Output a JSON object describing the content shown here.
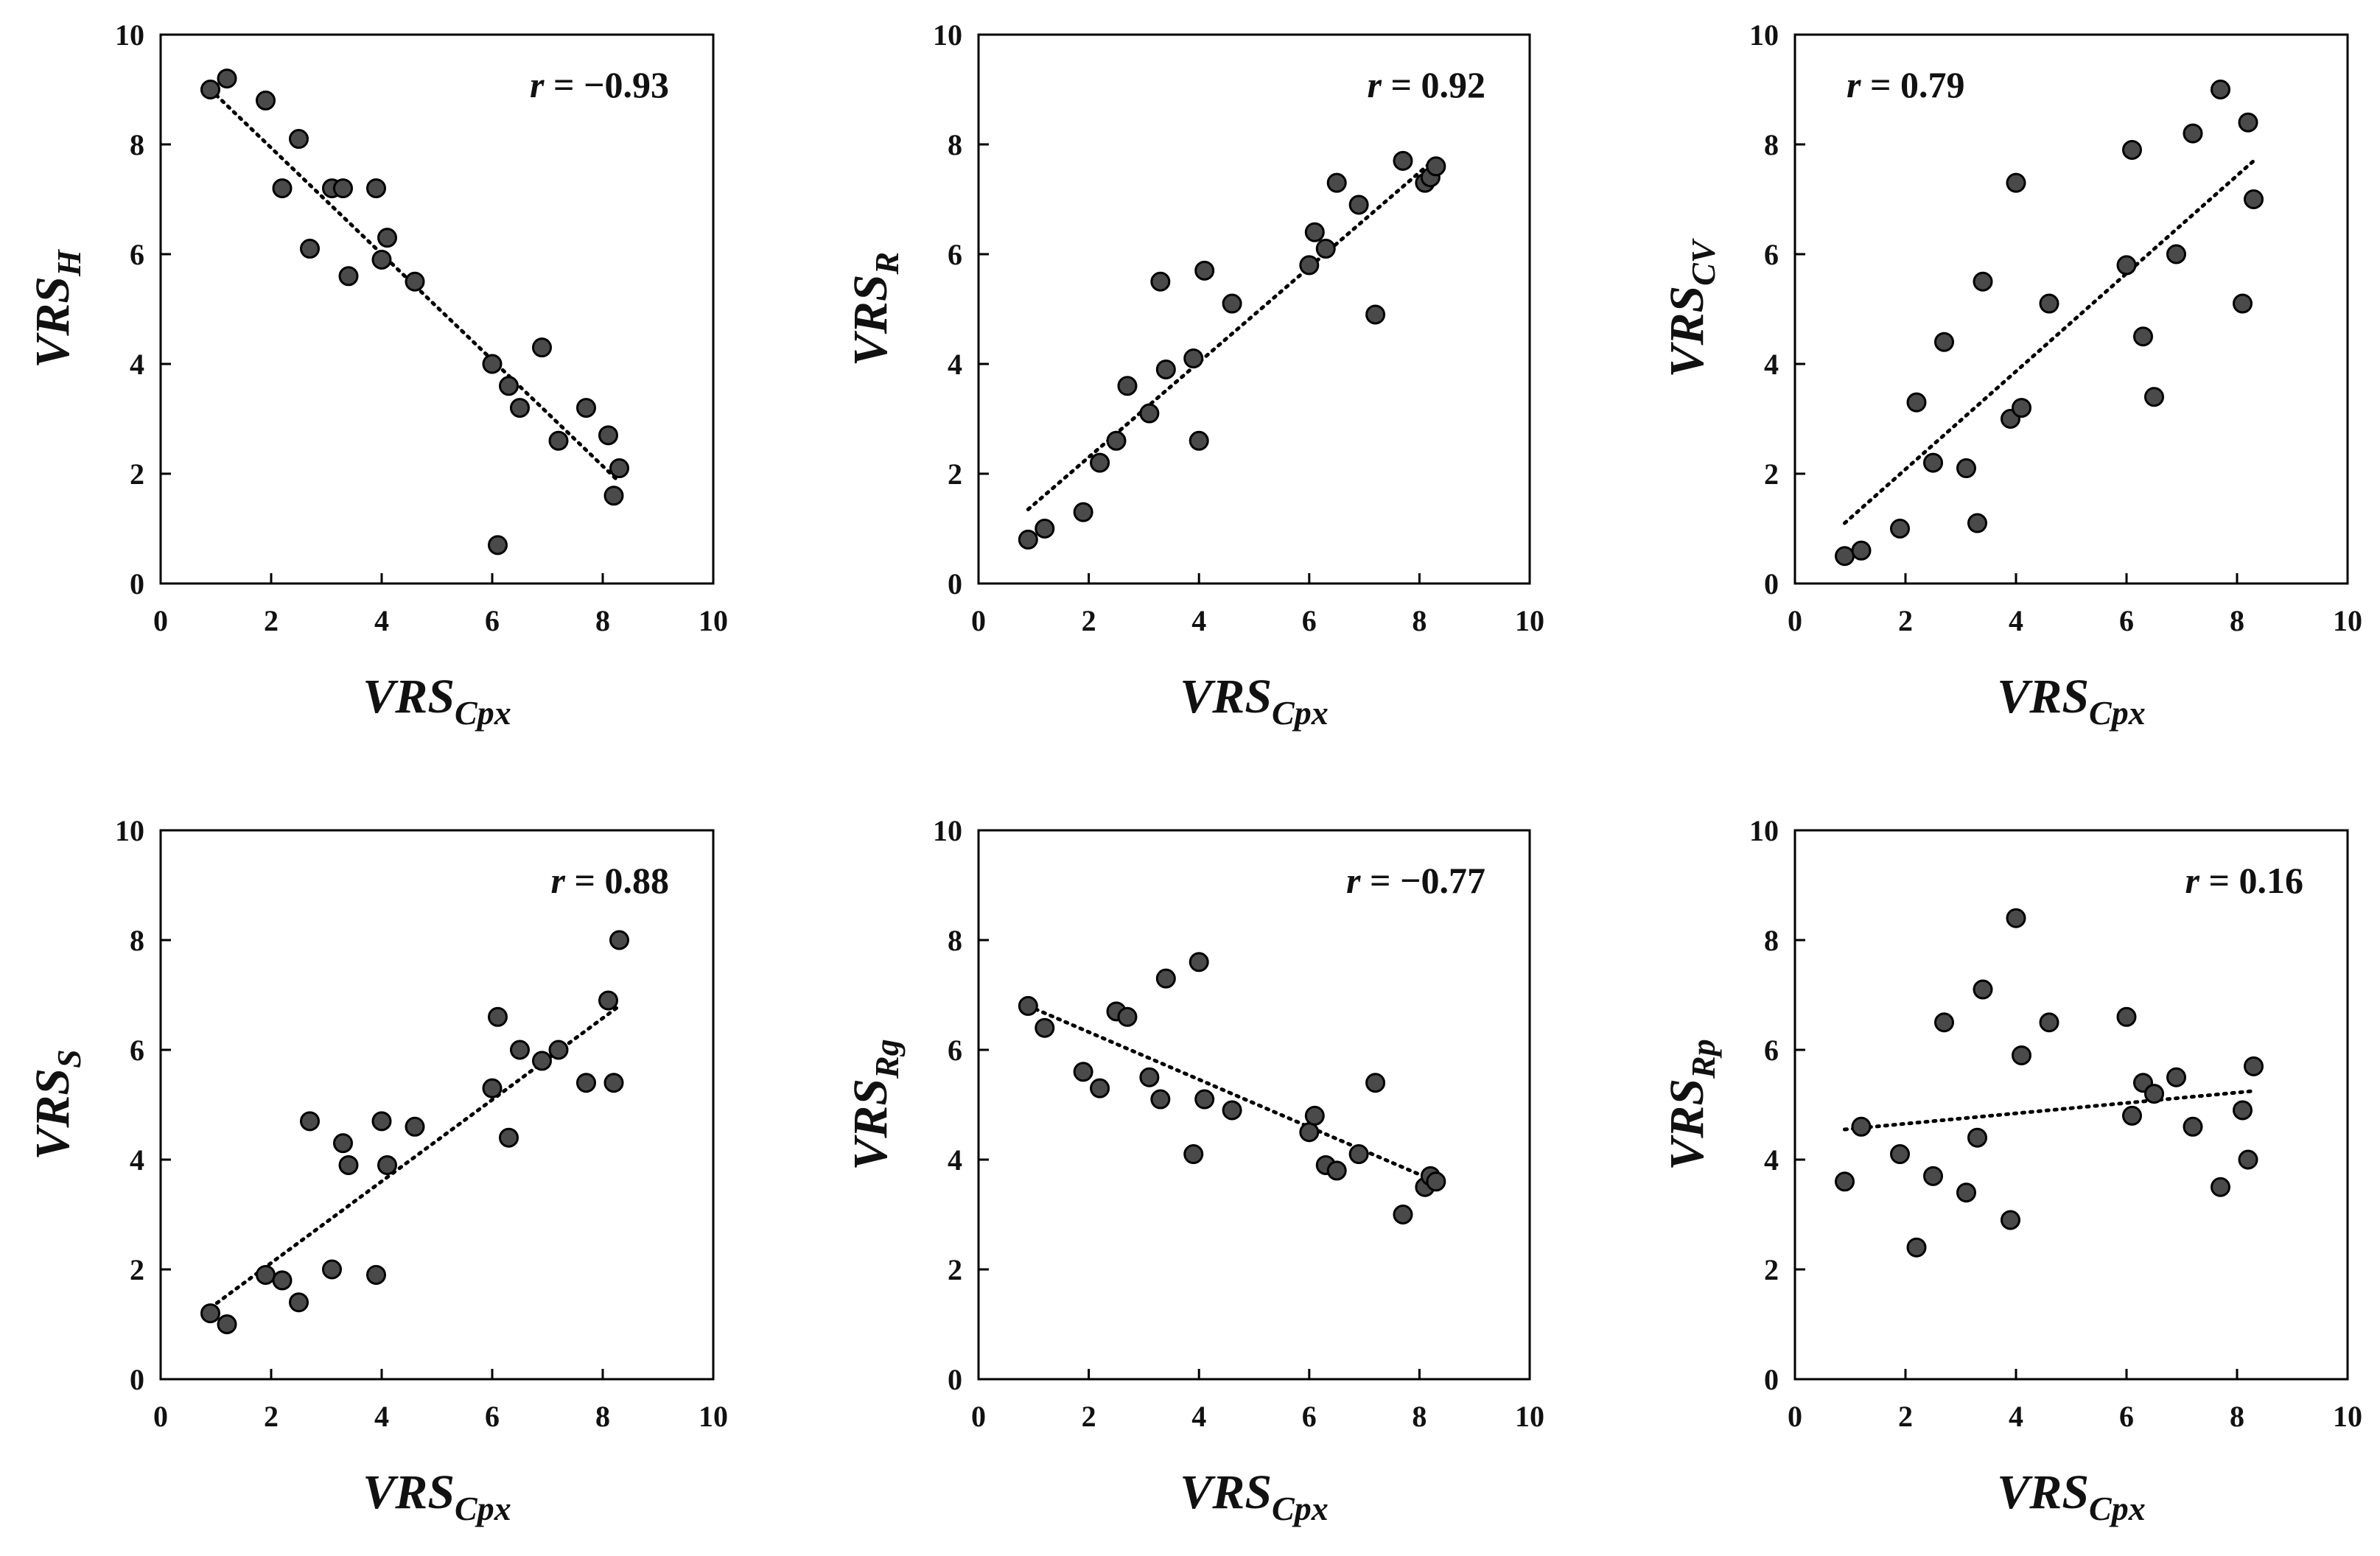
{
  "figure_title": "",
  "chart_data": [
    {
      "type": "scatter",
      "title": "",
      "xlabel": {
        "base": "VRS",
        "sub": "Cpx"
      },
      "ylabel": {
        "base": "VRS",
        "sub": "H"
      },
      "xlim": [
        0,
        10
      ],
      "ylim": [
        0,
        10
      ],
      "xticks": [
        0,
        2,
        4,
        6,
        8,
        10
      ],
      "yticks": [
        0,
        2,
        4,
        6,
        8,
        10
      ],
      "grid": false,
      "annotation": {
        "symbol": "r",
        "text": " = −0.93",
        "position": "top-right"
      },
      "trendline": {
        "style": "dotted",
        "x": [
          0.9,
          8.3
        ],
        "y": [
          9.0,
          1.85
        ]
      },
      "points": [
        [
          0.9,
          9.0
        ],
        [
          1.2,
          9.2
        ],
        [
          1.9,
          8.8
        ],
        [
          2.2,
          7.2
        ],
        [
          2.5,
          8.1
        ],
        [
          2.7,
          6.1
        ],
        [
          3.1,
          7.2
        ],
        [
          3.3,
          7.2
        ],
        [
          3.4,
          5.6
        ],
        [
          3.9,
          7.2
        ],
        [
          4.0,
          5.9
        ],
        [
          4.1,
          6.3
        ],
        [
          4.6,
          5.5
        ],
        [
          6.0,
          4.0
        ],
        [
          6.1,
          0.7
        ],
        [
          6.3,
          3.6
        ],
        [
          6.5,
          3.2
        ],
        [
          6.9,
          4.3
        ],
        [
          7.2,
          2.6
        ],
        [
          7.7,
          3.2
        ],
        [
          8.1,
          2.7
        ],
        [
          8.2,
          1.6
        ],
        [
          8.3,
          2.1
        ]
      ]
    },
    {
      "type": "scatter",
      "title": "",
      "xlabel": {
        "base": "VRS",
        "sub": "Cpx"
      },
      "ylabel": {
        "base": "VRS",
        "sub": "R"
      },
      "xlim": [
        0,
        10
      ],
      "ylim": [
        0,
        10
      ],
      "xticks": [
        0,
        2,
        4,
        6,
        8,
        10
      ],
      "yticks": [
        0,
        2,
        4,
        6,
        8,
        10
      ],
      "grid": false,
      "annotation": {
        "symbol": "r",
        "text": " = 0.92",
        "position": "top-right"
      },
      "trendline": {
        "style": "dotted",
        "x": [
          0.9,
          8.3
        ],
        "y": [
          1.35,
          7.75
        ]
      },
      "points": [
        [
          0.9,
          0.8
        ],
        [
          1.2,
          1.0
        ],
        [
          1.9,
          1.3
        ],
        [
          2.2,
          2.2
        ],
        [
          2.5,
          2.6
        ],
        [
          2.7,
          3.6
        ],
        [
          3.1,
          3.1
        ],
        [
          3.3,
          5.5
        ],
        [
          3.4,
          3.9
        ],
        [
          3.9,
          4.1
        ],
        [
          4.0,
          2.6
        ],
        [
          4.1,
          5.7
        ],
        [
          4.6,
          5.1
        ],
        [
          6.0,
          5.8
        ],
        [
          6.1,
          6.4
        ],
        [
          6.3,
          6.1
        ],
        [
          6.5,
          7.3
        ],
        [
          6.9,
          6.9
        ],
        [
          7.2,
          4.9
        ],
        [
          7.7,
          7.7
        ],
        [
          8.1,
          7.3
        ],
        [
          8.2,
          7.4
        ],
        [
          8.3,
          7.6
        ]
      ]
    },
    {
      "type": "scatter",
      "title": "",
      "xlabel": {
        "base": "VRS",
        "sub": "Cpx"
      },
      "ylabel": {
        "base": "VRS",
        "sub": "CV"
      },
      "xlim": [
        0,
        10
      ],
      "ylim": [
        0,
        10
      ],
      "xticks": [
        0,
        2,
        4,
        6,
        8,
        10
      ],
      "yticks": [
        0,
        2,
        4,
        6,
        8,
        10
      ],
      "grid": false,
      "annotation": {
        "symbol": "r",
        "text": " = 0.79",
        "position": "top-left"
      },
      "trendline": {
        "style": "dotted",
        "x": [
          0.9,
          8.3
        ],
        "y": [
          1.1,
          7.7
        ]
      },
      "points": [
        [
          0.9,
          0.5
        ],
        [
          1.2,
          0.6
        ],
        [
          1.9,
          1.0
        ],
        [
          2.2,
          3.3
        ],
        [
          2.5,
          2.2
        ],
        [
          2.7,
          4.4
        ],
        [
          3.1,
          2.1
        ],
        [
          3.3,
          1.1
        ],
        [
          3.4,
          5.5
        ],
        [
          3.9,
          3.0
        ],
        [
          4.0,
          7.3
        ],
        [
          4.1,
          3.2
        ],
        [
          4.6,
          5.1
        ],
        [
          6.0,
          5.8
        ],
        [
          6.1,
          7.9
        ],
        [
          6.3,
          4.5
        ],
        [
          6.5,
          3.4
        ],
        [
          6.9,
          6.0
        ],
        [
          7.2,
          8.2
        ],
        [
          7.7,
          9.0
        ],
        [
          8.1,
          5.1
        ],
        [
          8.2,
          8.4
        ],
        [
          8.3,
          7.0
        ]
      ]
    },
    {
      "type": "scatter",
      "title": "",
      "xlabel": {
        "base": "VRS",
        "sub": "Cpx"
      },
      "ylabel": {
        "base": "VRS",
        "sub": "S"
      },
      "xlim": [
        0,
        10
      ],
      "ylim": [
        0,
        10
      ],
      "xticks": [
        0,
        2,
        4,
        6,
        8,
        10
      ],
      "yticks": [
        0,
        2,
        4,
        6,
        8,
        10
      ],
      "grid": false,
      "annotation": {
        "symbol": "r",
        "text": " = 0.88",
        "position": "top-right"
      },
      "trendline": {
        "style": "dotted",
        "x": [
          0.9,
          8.3
        ],
        "y": [
          1.3,
          6.8
        ]
      },
      "points": [
        [
          0.9,
          1.2
        ],
        [
          1.2,
          1.0
        ],
        [
          1.9,
          1.9
        ],
        [
          2.2,
          1.8
        ],
        [
          2.5,
          1.4
        ],
        [
          2.7,
          4.7
        ],
        [
          3.1,
          2.0
        ],
        [
          3.3,
          4.3
        ],
        [
          3.4,
          3.9
        ],
        [
          3.9,
          1.9
        ],
        [
          4.0,
          4.7
        ],
        [
          4.1,
          3.9
        ],
        [
          4.6,
          4.6
        ],
        [
          6.0,
          5.3
        ],
        [
          6.1,
          6.6
        ],
        [
          6.3,
          4.4
        ],
        [
          6.5,
          6.0
        ],
        [
          6.9,
          5.8
        ],
        [
          7.2,
          6.0
        ],
        [
          7.7,
          5.4
        ],
        [
          8.1,
          6.9
        ],
        [
          8.2,
          5.4
        ],
        [
          8.3,
          8.0
        ]
      ]
    },
    {
      "type": "scatter",
      "title": "",
      "xlabel": {
        "base": "VRS",
        "sub": "Cpx"
      },
      "ylabel": {
        "base": "VRS",
        "sub": "Rg"
      },
      "xlim": [
        0,
        10
      ],
      "ylim": [
        0,
        10
      ],
      "xticks": [
        0,
        2,
        4,
        6,
        8,
        10
      ],
      "yticks": [
        0,
        2,
        4,
        6,
        8,
        10
      ],
      "grid": false,
      "annotation": {
        "symbol": "r",
        "text": " = −0.77",
        "position": "top-right"
      },
      "trendline": {
        "style": "dotted",
        "x": [
          0.9,
          8.3
        ],
        "y": [
          6.8,
          3.6
        ]
      },
      "points": [
        [
          0.9,
          6.8
        ],
        [
          1.2,
          6.4
        ],
        [
          1.9,
          5.6
        ],
        [
          2.2,
          5.3
        ],
        [
          2.5,
          6.7
        ],
        [
          2.7,
          6.6
        ],
        [
          3.1,
          5.5
        ],
        [
          3.3,
          5.1
        ],
        [
          3.4,
          7.3
        ],
        [
          3.9,
          4.1
        ],
        [
          4.0,
          7.6
        ],
        [
          4.1,
          5.1
        ],
        [
          4.6,
          4.9
        ],
        [
          6.0,
          4.5
        ],
        [
          6.1,
          4.8
        ],
        [
          6.3,
          3.9
        ],
        [
          6.5,
          3.8
        ],
        [
          6.9,
          4.1
        ],
        [
          7.2,
          5.4
        ],
        [
          7.7,
          3.0
        ],
        [
          8.1,
          3.5
        ],
        [
          8.2,
          3.7
        ],
        [
          8.3,
          3.6
        ]
      ]
    },
    {
      "type": "scatter",
      "title": "",
      "xlabel": {
        "base": "VRS",
        "sub": "Cpx"
      },
      "ylabel": {
        "base": "VRS",
        "sub": "Rp"
      },
      "xlim": [
        0,
        10
      ],
      "ylim": [
        0,
        10
      ],
      "xticks": [
        0,
        2,
        4,
        6,
        8,
        10
      ],
      "yticks": [
        0,
        2,
        4,
        6,
        8,
        10
      ],
      "grid": false,
      "annotation": {
        "symbol": "r",
        "text": " = 0.16",
        "position": "top-right"
      },
      "trendline": {
        "style": "dotted",
        "x": [
          0.9,
          8.3
        ],
        "y": [
          4.55,
          5.25
        ]
      },
      "points": [
        [
          0.9,
          3.6
        ],
        [
          1.2,
          4.6
        ],
        [
          1.9,
          4.1
        ],
        [
          2.2,
          2.4
        ],
        [
          2.5,
          3.7
        ],
        [
          2.7,
          6.5
        ],
        [
          3.1,
          3.4
        ],
        [
          3.3,
          4.4
        ],
        [
          3.4,
          7.1
        ],
        [
          3.9,
          2.9
        ],
        [
          4.0,
          8.4
        ],
        [
          4.1,
          5.9
        ],
        [
          4.6,
          6.5
        ],
        [
          6.0,
          6.6
        ],
        [
          6.1,
          4.8
        ],
        [
          6.3,
          5.4
        ],
        [
          6.5,
          5.2
        ],
        [
          6.9,
          5.5
        ],
        [
          7.2,
          4.6
        ],
        [
          7.7,
          3.5
        ],
        [
          8.1,
          4.9
        ],
        [
          8.2,
          4.0
        ],
        [
          8.3,
          5.7
        ]
      ]
    }
  ],
  "colors": {
    "point_fill": "#4a4a4a",
    "point_stroke": "#000000",
    "axis": "#000000",
    "text": "#111111",
    "trendline": "#000000"
  }
}
